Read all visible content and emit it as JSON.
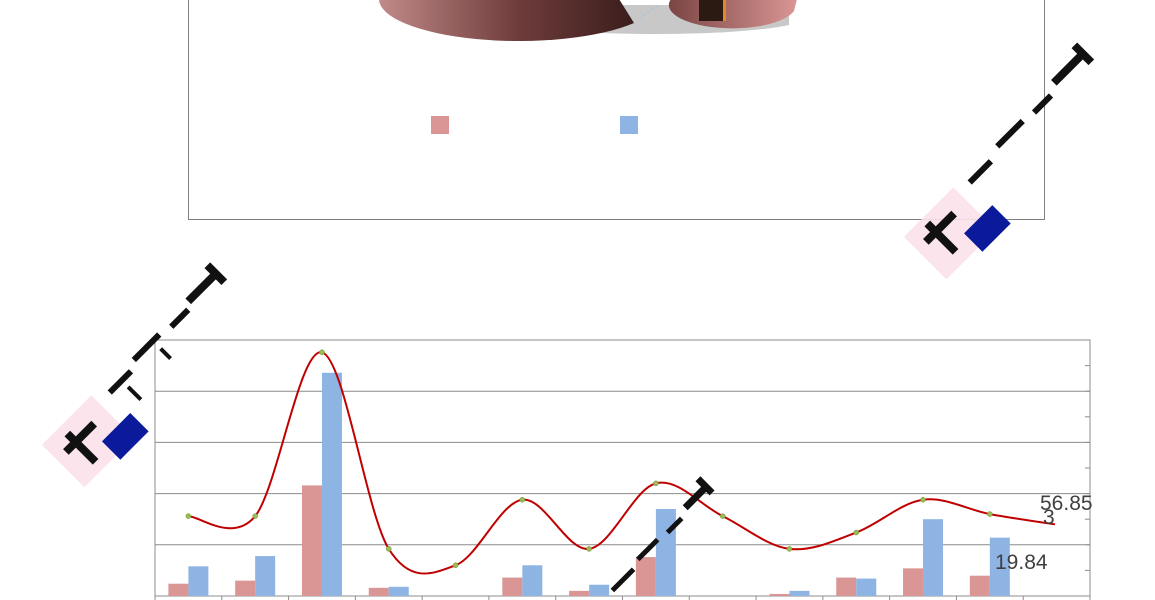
{
  "chart_data": [
    {
      "type": "pie",
      "title": "",
      "legend_position": "bottom",
      "series": [
        {
          "name": "",
          "color": "#d99694"
        },
        {
          "name": "",
          "color": "#8eb4e3"
        }
      ]
    },
    {
      "type": "bar",
      "title": "",
      "xlabel": "",
      "ylabel": "",
      "grid": true,
      "ylim": [
        0,
        250
      ],
      "categories": [
        "",
        "",
        "",
        "",
        "",
        "",
        "",
        "",
        "",
        "",
        "",
        "",
        "",
        ""
      ],
      "series": [
        {
          "name": "",
          "type": "bar",
          "color": "#d99694",
          "values": [
            12,
            15,
            108,
            8,
            0,
            18,
            5,
            38,
            0,
            2,
            18,
            27,
            19.84,
            0
          ]
        },
        {
          "name": "",
          "type": "bar",
          "color": "#8eb4e3",
          "values": [
            29,
            39,
            218,
            9,
            0,
            30,
            11,
            85,
            0,
            5,
            17,
            75,
            57,
            0
          ]
        },
        {
          "name": "",
          "type": "line",
          "color": "#c00000",
          "values": [
            78,
            78,
            238,
            46,
            30,
            94,
            46,
            110,
            78,
            46,
            62,
            94,
            80,
            0
          ]
        }
      ],
      "data_labels": [
        "56.85",
        "3",
        "19.84"
      ]
    }
  ],
  "watermark_icon": "stamp-logo-icon"
}
